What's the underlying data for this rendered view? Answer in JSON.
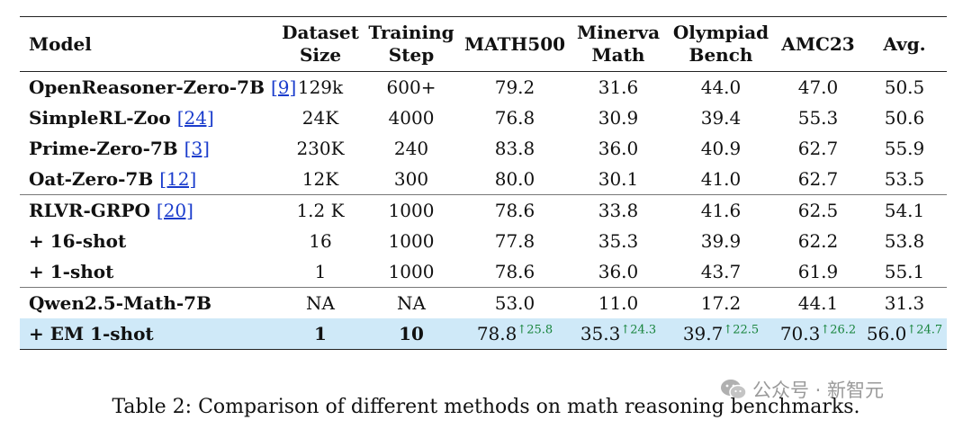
{
  "table": {
    "headers": [
      {
        "line1": "Model",
        "line2": ""
      },
      {
        "line1": "Dataset",
        "line2": "Size"
      },
      {
        "line1": "Training",
        "line2": "Step"
      },
      {
        "line1": "MATH500",
        "line2": ""
      },
      {
        "line1": "Minerva",
        "line2": "Math"
      },
      {
        "line1": "Olympiad",
        "line2": "Bench"
      },
      {
        "line1": "AMC23",
        "line2": ""
      },
      {
        "line1": "Avg.",
        "line2": ""
      }
    ],
    "rows": [
      {
        "model": "OpenReasoner-Zero-7B",
        "cite": "[9]",
        "dataset": "129k",
        "steps": "600+",
        "math500": "79.2",
        "minerva": "31.6",
        "olympiad": "44.0",
        "amc23": "47.0",
        "avg": "50.5"
      },
      {
        "model": "SimpleRL-Zoo",
        "cite": "[24]",
        "dataset": "24K",
        "steps": "4000",
        "math500": "76.8",
        "minerva": "30.9",
        "olympiad": "39.4",
        "amc23": "55.3",
        "avg": "50.6"
      },
      {
        "model": "Prime-Zero-7B",
        "cite": "[3]",
        "dataset": "230K",
        "steps": "240",
        "math500": "83.8",
        "minerva": "36.0",
        "olympiad": "40.9",
        "amc23": "62.7",
        "avg": "55.9"
      },
      {
        "model": "Oat-Zero-7B",
        "cite": "[12]",
        "dataset": "12K",
        "steps": "300",
        "math500": "80.0",
        "minerva": "30.1",
        "olympiad": "41.0",
        "amc23": "62.7",
        "avg": "53.5"
      },
      {
        "model": "RLVR-GRPO",
        "cite": "[20]",
        "dataset": "1.2 K",
        "steps": "1000",
        "math500": "78.6",
        "minerva": "33.8",
        "olympiad": "41.6",
        "amc23": "62.5",
        "avg": "54.1"
      },
      {
        "model": "+ 16-shot",
        "cite": "",
        "dataset": "16",
        "steps": "1000",
        "math500": "77.8",
        "minerva": "35.3",
        "olympiad": "39.9",
        "amc23": "62.2",
        "avg": "53.8"
      },
      {
        "model": "+ 1-shot",
        "cite": "",
        "dataset": "1",
        "steps": "1000",
        "math500": "78.6",
        "minerva": "36.0",
        "olympiad": "43.7",
        "amc23": "61.9",
        "avg": "55.1"
      },
      {
        "model": "Qwen2.5-Math-7B",
        "cite": "",
        "dataset": "NA",
        "steps": "NA",
        "math500": "53.0",
        "minerva": "11.0",
        "olympiad": "17.2",
        "amc23": "44.1",
        "avg": "31.3"
      }
    ],
    "highlight_row": {
      "model": "+ EM 1-shot",
      "dataset": "1",
      "steps": "10",
      "math500": "78.8",
      "math500_gain": "↑25.8",
      "minerva": "35.3",
      "minerva_gain": "↑24.3",
      "olympiad": "39.7",
      "olympiad_gain": "↑22.5",
      "amc23": "70.3",
      "amc23_gain": "↑26.2",
      "avg": "56.0",
      "avg_gain": "↑24.7"
    }
  },
  "caption": "Table 2: Comparison of different methods on math reasoning benchmarks.",
  "watermark": {
    "icon": "wechat-icon",
    "text": "公众号 · 新智元"
  },
  "colors": {
    "highlight_bg": "#cfe9f8",
    "gain": "#16833a",
    "cite": "#1a3ccc"
  }
}
